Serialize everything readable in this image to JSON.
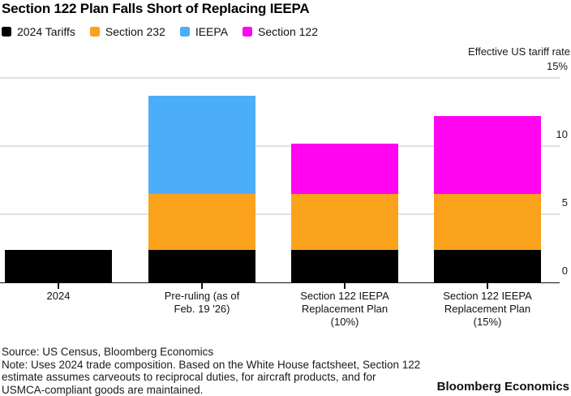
{
  "header": {
    "title": "Section 122 Plan Falls Short of Replacing IEEPA"
  },
  "chart_data": {
    "type": "bar",
    "stacked": true,
    "title": "Section 122 Plan Falls Short of Replacing IEEPA",
    "ylabel": "Effective US tariff rate",
    "xlabel": "",
    "ylim": [
      0,
      15
    ],
    "yticks": [
      0,
      5,
      10,
      15
    ],
    "ytick_labels": [
      "0",
      "5",
      "10",
      "15%"
    ],
    "grid": true,
    "legend_position": "top",
    "categories": [
      "2024",
      "Pre-ruling (as of\nFeb. 19 '26)",
      "Section 122 IEEPA\nReplacement Plan\n(10%)",
      "Section 122 IEEPA\nReplacement Plan\n(15%)"
    ],
    "series": [
      {
        "name": "2024 Tariffs",
        "color": "#000000",
        "values": [
          2.4,
          2.4,
          2.4,
          2.4
        ]
      },
      {
        "name": "Section 232",
        "color": "#FBA21C",
        "values": [
          0,
          4.1,
          4.1,
          4.1
        ]
      },
      {
        "name": "IEEPA",
        "color": "#4CADF8",
        "values": [
          0,
          7.2,
          0,
          0
        ]
      },
      {
        "name": "Section 122",
        "color": "#FF05F0",
        "values": [
          0,
          0,
          3.7,
          5.7
        ]
      }
    ],
    "totals": [
      2.4,
      13.7,
      10.2,
      12.2
    ]
  },
  "footer": {
    "lines": [
      "Source: US Census, Bloomberg Economics",
      "Note: Uses 2024 trade composition. Based on the White House factsheet, Section 122",
      "estimate assumes carveouts to reciprocal duties, for aircraft products, and for",
      "USMCA-compliant goods are maintained."
    ],
    "brand": "Bloomberg Economics"
  }
}
